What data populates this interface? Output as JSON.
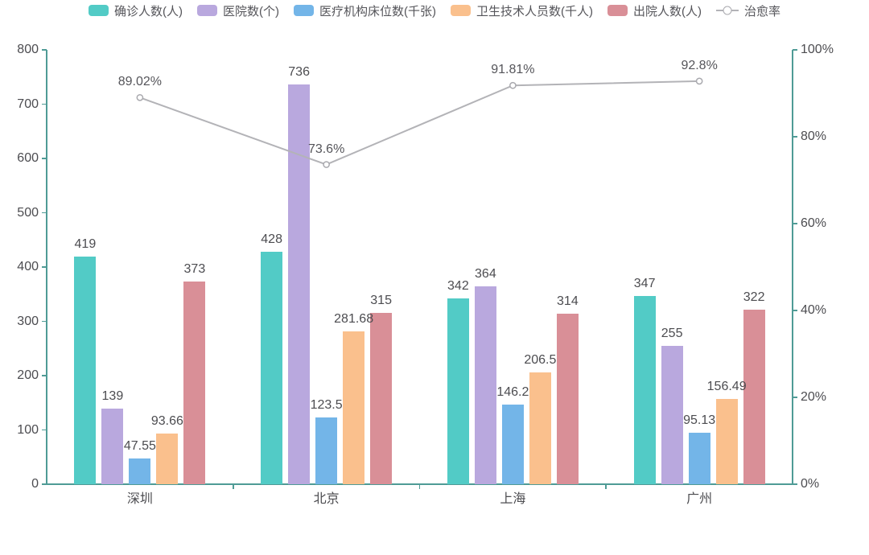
{
  "chart_data": {
    "type": "bar",
    "subtype": "grouped-bar-with-line",
    "categories": [
      "深圳",
      "北京",
      "上海",
      "广州"
    ],
    "series": [
      {
        "id": "confirmed",
        "name": "确诊人数(人)",
        "type": "bar",
        "color": "#52cbc6",
        "values": [
          419,
          428,
          342,
          347
        ]
      },
      {
        "id": "hospitals",
        "name": "医院数(个)",
        "type": "bar",
        "color": "#b9a8de",
        "values": [
          139,
          736,
          364,
          255
        ]
      },
      {
        "id": "beds",
        "name": "医疗机构床位数(千张)",
        "type": "bar",
        "color": "#73b5e8",
        "values": [
          47.55,
          123.5,
          146.2,
          95.13
        ]
      },
      {
        "id": "health-staff",
        "name": "卫生技术人员数(千人)",
        "type": "bar",
        "color": "#fac08d",
        "values": [
          93.66,
          281.68,
          206.5,
          156.49
        ]
      },
      {
        "id": "discharged",
        "name": "出院人数(人)",
        "type": "bar",
        "color": "#d98f97",
        "values": [
          373,
          315,
          314,
          322
        ]
      },
      {
        "id": "cure-rate",
        "name": "治愈率",
        "type": "line",
        "color": "#b3b3b7",
        "values": [
          89.02,
          73.6,
          91.81,
          92.8
        ],
        "labels": [
          "89.02%",
          "73.6%",
          "91.81%",
          "92.8%"
        ]
      }
    ],
    "left_axis": {
      "min": 0,
      "max": 800,
      "step": 100,
      "ticks": [
        "800",
        "700",
        "600",
        "500",
        "400",
        "300",
        "200",
        "100",
        "0"
      ]
    },
    "right_axis": {
      "min": 0,
      "max": 100,
      "step": 20,
      "ticks": [
        "100%",
        "80%",
        "60%",
        "40%",
        "20%",
        "0%"
      ]
    },
    "grid": false,
    "legend_position": "bottom",
    "colors": {
      "axis": "#4f9b96",
      "line_series": "#b3b3b7",
      "label_text": "#4c4c50",
      "legend_text": "#55555a",
      "background": "#ffffff"
    }
  }
}
